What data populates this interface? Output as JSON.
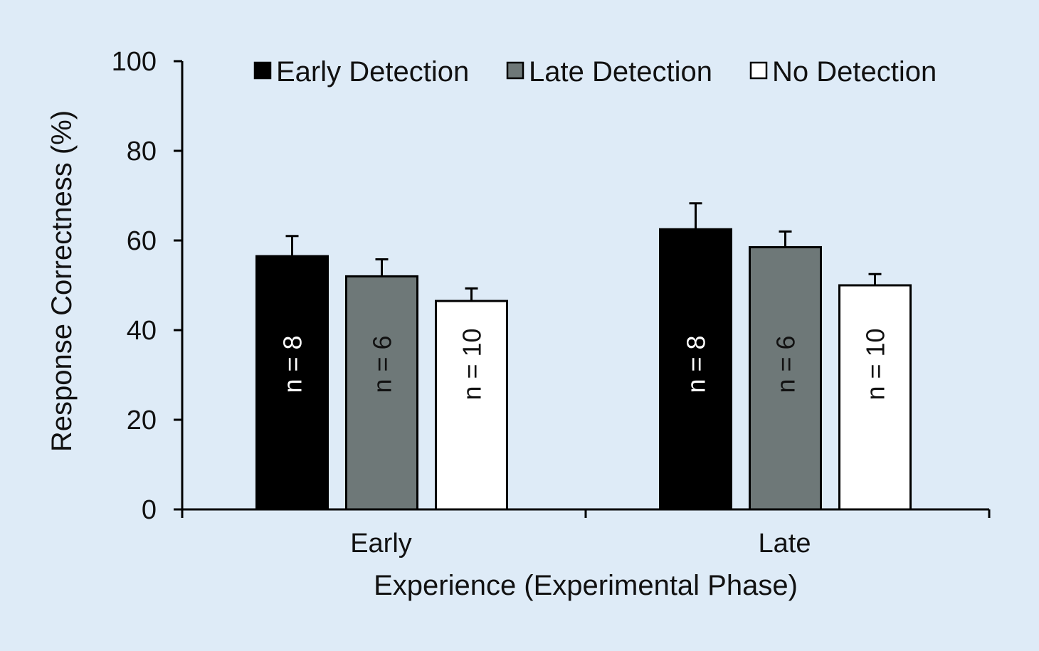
{
  "chart_data": {
    "type": "bar",
    "title": "",
    "xlabel": "Experience (Experimental Phase)",
    "ylabel": "Response Correctness (%)",
    "ylim": [
      0,
      100
    ],
    "yticks": [
      "0",
      "20",
      "40",
      "60",
      "80",
      "100"
    ],
    "categories": [
      "Early",
      "Late"
    ],
    "legend_position": "top",
    "grid": false,
    "series": [
      {
        "name": "Early Detection",
        "color": "#000000",
        "label_color": "#ffffff",
        "values": [
          56.5,
          62.5
        ],
        "errors": [
          4.5,
          5.8
        ],
        "bar_labels": [
          "n = 8",
          "n = 8"
        ]
      },
      {
        "name": "Late Detection",
        "color": "#6e7878",
        "label_color": "#111111",
        "values": [
          52,
          58.5
        ],
        "errors": [
          3.8,
          3.5
        ],
        "bar_labels": [
          "n = 6",
          "n = 6"
        ]
      },
      {
        "name": "No Detection",
        "color": "#ffffff",
        "label_color": "#111111",
        "values": [
          46.5,
          50
        ],
        "errors": [
          2.8,
          2.5
        ],
        "bar_labels": [
          "n = 10",
          "n = 10"
        ]
      }
    ]
  }
}
